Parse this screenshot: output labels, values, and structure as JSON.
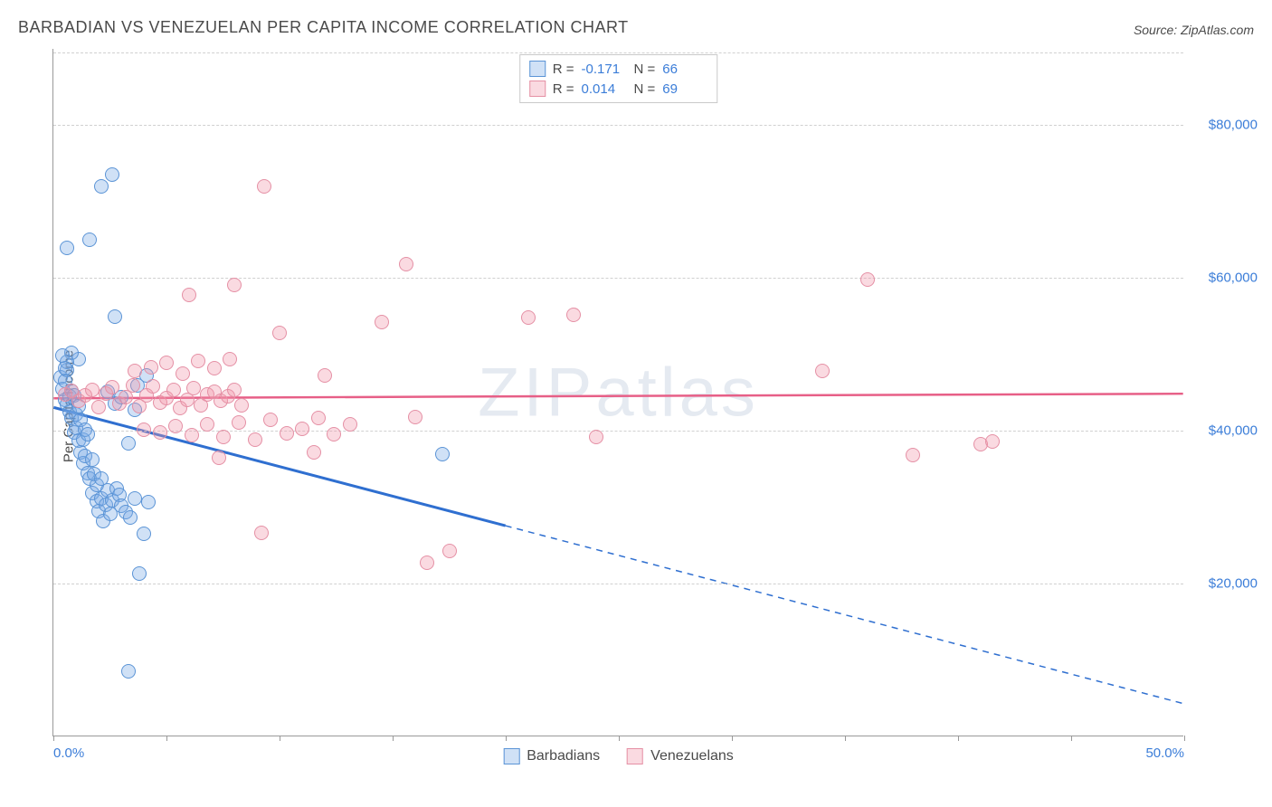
{
  "title": "BARBADIAN VS VENEZUELAN PER CAPITA INCOME CORRELATION CHART",
  "source": "Source: ZipAtlas.com",
  "y_axis_label": "Per Capita Income",
  "watermark": "ZIPatlas",
  "chart": {
    "type": "scatter",
    "xlim": [
      0,
      50
    ],
    "ylim": [
      0,
      90000
    ],
    "x_ticks": [
      0,
      5,
      10,
      15,
      20,
      25,
      30,
      35,
      40,
      45,
      50
    ],
    "x_tick_labels": {
      "0": "0.0%",
      "50": "50.0%"
    },
    "y_gridlines": [
      20000,
      40000,
      60000,
      80000
    ],
    "y_tick_labels": [
      "$20,000",
      "$40,000",
      "$60,000",
      "$80,000"
    ],
    "background_color": "#ffffff",
    "grid_color": "#d0d0d0",
    "axis_color": "#999999",
    "marker_radius": 8,
    "marker_border_width": 1.5,
    "series": [
      {
        "name": "Barbadians",
        "fill": "rgba(120,170,230,0.35)",
        "stroke": "#5b94d6",
        "R": "-0.171",
        "N": "66",
        "trend": {
          "x1": 0,
          "y1": 43000,
          "x2_solid": 20,
          "y2_solid": 27500,
          "x2": 50,
          "y2": 4200,
          "solid_width": 3,
          "dash_width": 1.5,
          "color": "#2f6fd0"
        },
        "points": [
          [
            0.3,
            47000
          ],
          [
            0.4,
            45500
          ],
          [
            0.5,
            46500
          ],
          [
            0.5,
            44000
          ],
          [
            0.6,
            43500
          ],
          [
            0.6,
            48000
          ],
          [
            0.7,
            44500
          ],
          [
            0.7,
            42500
          ],
          [
            0.8,
            41700
          ],
          [
            0.8,
            45200
          ],
          [
            0.9,
            39800
          ],
          [
            0.9,
            44700
          ],
          [
            1.0,
            42100
          ],
          [
            1.0,
            40400
          ],
          [
            1.1,
            38700
          ],
          [
            1.1,
            43200
          ],
          [
            1.2,
            37200
          ],
          [
            1.2,
            41500
          ],
          [
            1.3,
            38900
          ],
          [
            1.3,
            35800
          ],
          [
            1.4,
            40200
          ],
          [
            1.4,
            36700
          ],
          [
            1.5,
            34500
          ],
          [
            1.5,
            39600
          ],
          [
            1.6,
            33700
          ],
          [
            1.7,
            31800
          ],
          [
            1.7,
            36200
          ],
          [
            1.8,
            34300
          ],
          [
            1.9,
            30800
          ],
          [
            1.9,
            32900
          ],
          [
            2.0,
            29500
          ],
          [
            2.1,
            31200
          ],
          [
            2.1,
            33800
          ],
          [
            2.2,
            28200
          ],
          [
            2.3,
            30300
          ],
          [
            2.4,
            32200
          ],
          [
            2.5,
            29100
          ],
          [
            2.6,
            30900
          ],
          [
            2.7,
            55000
          ],
          [
            2.8,
            32400
          ],
          [
            2.9,
            31600
          ],
          [
            3.0,
            30200
          ],
          [
            3.2,
            29400
          ],
          [
            3.4,
            28700
          ],
          [
            3.6,
            31100
          ],
          [
            3.8,
            21300
          ],
          [
            4.0,
            26500
          ],
          [
            4.2,
            30700
          ],
          [
            1.6,
            65000
          ],
          [
            2.1,
            72000
          ],
          [
            2.6,
            73500
          ],
          [
            0.6,
            64000
          ],
          [
            2.4,
            45100
          ],
          [
            2.7,
            43600
          ],
          [
            3.0,
            44400
          ],
          [
            3.3,
            38400
          ],
          [
            3.6,
            42800
          ],
          [
            1.1,
            49400
          ],
          [
            0.8,
            50200
          ],
          [
            0.6,
            49000
          ],
          [
            0.5,
            48200
          ],
          [
            0.4,
            49800
          ],
          [
            3.7,
            45900
          ],
          [
            4.1,
            47300
          ],
          [
            3.3,
            8500
          ],
          [
            17.2,
            37000
          ]
        ]
      },
      {
        "name": "Venezuelans",
        "fill": "rgba(240,150,170,0.35)",
        "stroke": "#e590a5",
        "R": "0.014",
        "N": "69",
        "trend": {
          "x1": 0,
          "y1": 44200,
          "x2_solid": 50,
          "y2_solid": 44800,
          "x2": 50,
          "y2": 44800,
          "solid_width": 2.5,
          "dash_width": 0,
          "color": "#e75f87"
        },
        "points": [
          [
            0.5,
            44800
          ],
          [
            0.8,
            45200
          ],
          [
            1.1,
            43900
          ],
          [
            1.4,
            44700
          ],
          [
            1.7,
            45300
          ],
          [
            2.0,
            43100
          ],
          [
            2.3,
            44900
          ],
          [
            2.6,
            45700
          ],
          [
            2.9,
            43600
          ],
          [
            3.2,
            44400
          ],
          [
            3.5,
            45900
          ],
          [
            3.8,
            43200
          ],
          [
            4.1,
            44600
          ],
          [
            4.4,
            45800
          ],
          [
            4.7,
            43700
          ],
          [
            5.0,
            44300
          ],
          [
            5.3,
            45400
          ],
          [
            5.6,
            43000
          ],
          [
            5.9,
            44100
          ],
          [
            6.2,
            45600
          ],
          [
            6.5,
            43400
          ],
          [
            6.8,
            44800
          ],
          [
            7.1,
            45100
          ],
          [
            7.4,
            43900
          ],
          [
            7.7,
            44500
          ],
          [
            8.0,
            45300
          ],
          [
            8.3,
            43300
          ],
          [
            3.6,
            47900
          ],
          [
            4.3,
            48300
          ],
          [
            5.0,
            48900
          ],
          [
            5.7,
            47500
          ],
          [
            6.4,
            49100
          ],
          [
            7.1,
            48200
          ],
          [
            7.8,
            49400
          ],
          [
            4.0,
            40200
          ],
          [
            4.7,
            39800
          ],
          [
            5.4,
            40600
          ],
          [
            6.1,
            39400
          ],
          [
            6.8,
            40800
          ],
          [
            7.5,
            39200
          ],
          [
            8.2,
            41100
          ],
          [
            8.9,
            38900
          ],
          [
            9.6,
            41400
          ],
          [
            10.3,
            39700
          ],
          [
            11.0,
            40300
          ],
          [
            11.7,
            41700
          ],
          [
            12.4,
            39500
          ],
          [
            13.1,
            40900
          ],
          [
            6.0,
            57800
          ],
          [
            8.0,
            59100
          ],
          [
            9.3,
            72000
          ],
          [
            10.0,
            52800
          ],
          [
            12.0,
            47200
          ],
          [
            14.5,
            54200
          ],
          [
            15.6,
            61800
          ],
          [
            16.0,
            41800
          ],
          [
            16.5,
            22700
          ],
          [
            17.5,
            24300
          ],
          [
            21.0,
            54800
          ],
          [
            23.0,
            55200
          ],
          [
            24.0,
            39200
          ],
          [
            34.0,
            47800
          ],
          [
            36.0,
            59800
          ],
          [
            38.0,
            36800
          ],
          [
            41.0,
            38200
          ],
          [
            41.5,
            38600
          ],
          [
            9.2,
            26600
          ],
          [
            7.3,
            36500
          ],
          [
            11.5,
            37200
          ]
        ]
      }
    ]
  },
  "legend_bottom": [
    "Barbadians",
    "Venezuelans"
  ],
  "stats_labels": {
    "r": "R =",
    "n": "N ="
  }
}
